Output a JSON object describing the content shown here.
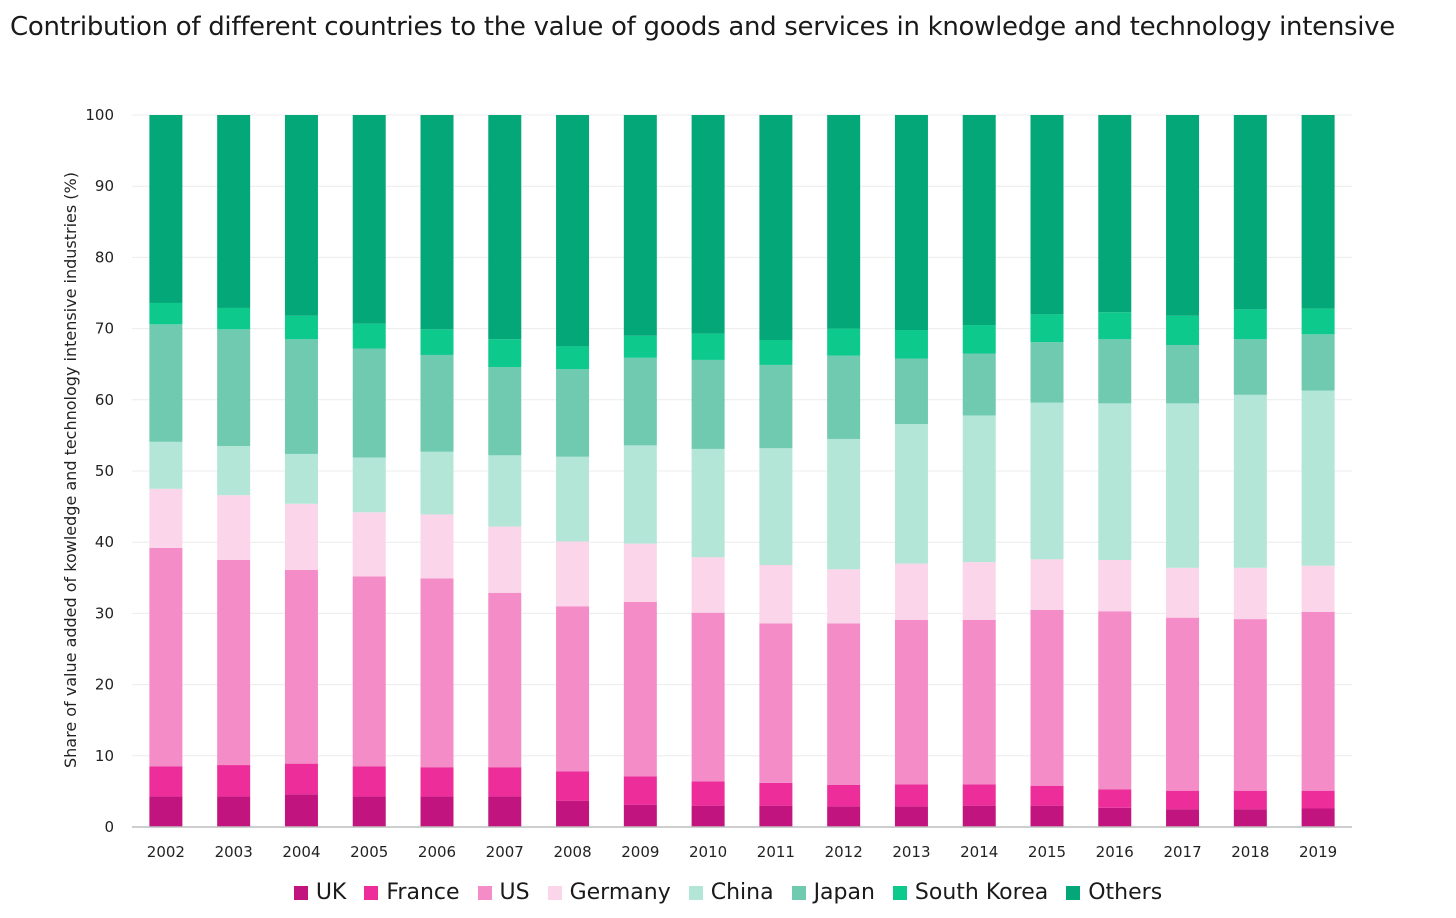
{
  "chart_data": {
    "type": "bar",
    "stacked": true,
    "title": "Contribution of different countries to the value of goods and services in knowledge and technology intensive",
    "xlabel": "",
    "ylabel": "Share of value added of kowledge and technology intensive industries (%)",
    "ylim": [
      0,
      100
    ],
    "yticks": [
      "0",
      "10",
      "20",
      "30",
      "40",
      "50",
      "60",
      "70",
      "80",
      "90",
      "100"
    ],
    "grid": true,
    "legend_position": "bottom",
    "categories": [
      "2002",
      "2003",
      "2004",
      "2005",
      "2006",
      "2007",
      "2008",
      "2009",
      "2010",
      "2011",
      "2012",
      "2013",
      "2014",
      "2015",
      "2016",
      "2017",
      "2018",
      "2019"
    ],
    "series": [
      {
        "name": "UK",
        "color": "#c2147e",
        "values": [
          4.3,
          4.3,
          4.6,
          4.3,
          4.3,
          4.3,
          3.7,
          3.1,
          3.0,
          3.0,
          2.9,
          2.9,
          3.0,
          3.0,
          2.7,
          2.5,
          2.5,
          2.6
        ]
      },
      {
        "name": "France",
        "color": "#ec2d9a",
        "values": [
          4.2,
          4.4,
          4.3,
          4.2,
          4.1,
          4.1,
          4.1,
          4.0,
          3.4,
          3.2,
          3.0,
          3.1,
          3.0,
          2.8,
          2.6,
          2.6,
          2.6,
          2.5
        ]
      },
      {
        "name": "US",
        "color": "#f48cc8",
        "values": [
          30.7,
          28.8,
          27.2,
          26.7,
          26.5,
          24.5,
          23.2,
          24.5,
          23.7,
          22.4,
          22.7,
          23.1,
          23.1,
          24.7,
          25.0,
          24.3,
          24.1,
          25.1
        ]
      },
      {
        "name": "Germany",
        "color": "#fbd5ea",
        "values": [
          8.3,
          9.1,
          9.3,
          9.0,
          9.0,
          9.3,
          9.1,
          8.2,
          7.8,
          8.2,
          7.6,
          7.9,
          8.1,
          7.1,
          7.2,
          7.0,
          7.2,
          6.5
        ]
      },
      {
        "name": "China",
        "color": "#b3e6d6",
        "values": [
          6.6,
          6.9,
          7.0,
          7.7,
          8.8,
          10.0,
          11.9,
          13.8,
          15.2,
          16.4,
          18.3,
          19.6,
          20.6,
          22.0,
          22.0,
          23.1,
          24.3,
          24.6
        ]
      },
      {
        "name": "Japan",
        "color": "#6fcab0",
        "values": [
          16.5,
          16.4,
          16.1,
          15.3,
          13.6,
          12.4,
          12.3,
          12.3,
          12.5,
          11.7,
          11.7,
          9.2,
          8.7,
          8.5,
          9.0,
          8.2,
          7.8,
          7.9
        ]
      },
      {
        "name": "South Korea",
        "color": "#0dc98c",
        "values": [
          3.0,
          3.0,
          3.3,
          3.5,
          3.6,
          3.9,
          3.2,
          3.1,
          3.7,
          3.5,
          3.8,
          4.0,
          4.0,
          3.9,
          3.8,
          4.1,
          4.2,
          3.6
        ]
      },
      {
        "name": "Others",
        "color": "#04a777",
        "values": [
          26.4,
          27.1,
          28.2,
          29.3,
          30.1,
          31.5,
          32.5,
          31.0,
          30.7,
          31.6,
          30.0,
          30.2,
          29.5,
          28.0,
          27.7,
          28.2,
          27.3,
          27.2
        ]
      }
    ]
  }
}
